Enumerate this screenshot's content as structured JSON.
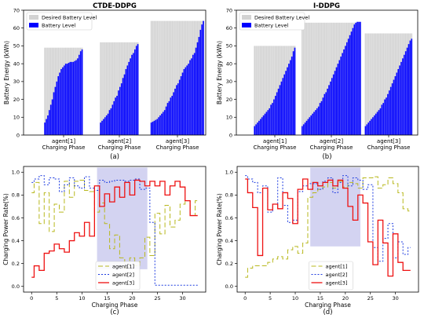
{
  "chart_data": [
    {
      "type": "bar",
      "title": "CTDE-DDPG",
      "ylabel": "Battery Energy (kWh)",
      "ylim": [
        0,
        70
      ],
      "yticks": [
        0,
        10,
        20,
        30,
        40,
        50,
        60,
        70
      ],
      "legend": {
        "placement": "top-left",
        "items": [
          "Desired Battery Level",
          "Battery Level"
        ]
      },
      "colors": {
        "desired": "#d3d3d3",
        "battery": "#0000ff"
      },
      "caption": "(a)",
      "groups": [
        {
          "label_line1": "agent[1]",
          "label_line2": "Charging Phase",
          "desired": 49,
          "values": [
            7,
            9,
            11,
            14,
            17,
            20,
            24,
            27,
            30,
            33,
            35,
            37,
            38,
            39,
            40,
            40,
            40.5,
            41,
            41,
            41,
            41.5,
            42,
            43,
            45,
            47,
            48
          ]
        },
        {
          "label_line1": "agent[2]",
          "label_line2": "Charging Phase",
          "desired": 52,
          "values": [
            7,
            8,
            9,
            10,
            11,
            12,
            14,
            15,
            17,
            19,
            21,
            22,
            25,
            27,
            29,
            32,
            34,
            37,
            39,
            41,
            43,
            45,
            46,
            48,
            50,
            51
          ]
        },
        {
          "label_line1": "agent[3]",
          "label_line2": "Charging Phase",
          "desired": 64,
          "values": [
            7,
            7.5,
            8,
            8.5,
            9,
            10,
            11,
            12,
            13,
            14,
            16,
            18,
            19,
            21,
            22,
            24,
            26,
            28,
            29,
            31,
            33,
            35,
            37,
            38,
            39,
            40,
            42,
            43,
            45,
            46,
            49,
            52,
            55,
            59,
            62,
            64
          ]
        }
      ]
    },
    {
      "type": "bar",
      "title": "I-DDPG",
      "ylabel": "Battery Energy (kWh)",
      "ylim": [
        0,
        70
      ],
      "yticks": [
        0,
        10,
        20,
        30,
        40,
        50,
        60,
        70
      ],
      "legend": {
        "placement": "top-left",
        "items": [
          "Desired Battery Level",
          "Battery Level"
        ]
      },
      "colors": {
        "desired": "#d3d3d3",
        "battery": "#0000ff"
      },
      "caption": "(b)",
      "groups": [
        {
          "label_line1": "agent[1]",
          "label_line2": "Charging Phase",
          "desired": 50,
          "values": [
            5,
            6,
            7,
            8,
            9,
            10,
            11,
            12,
            13,
            14,
            15,
            17,
            18,
            20,
            22,
            24,
            26,
            28,
            30,
            32,
            34,
            36,
            38,
            40,
            42,
            44,
            47,
            49
          ]
        },
        {
          "label_line1": "agent[2]",
          "label_line2": "Charging Phase",
          "desired": 63,
          "values": [
            5,
            6,
            7,
            8,
            9,
            10,
            11,
            12,
            13,
            14,
            15,
            16,
            18,
            19,
            21,
            23,
            24,
            26,
            28,
            30,
            32,
            34,
            36,
            38,
            40,
            42,
            44,
            46,
            48,
            50,
            52,
            54,
            56,
            58,
            60,
            62,
            63,
            63.5,
            63.5,
            63.5
          ]
        },
        {
          "label_line1": "agent[3]",
          "label_line2": "Charging Phase",
          "desired": 57,
          "values": [
            5,
            6,
            7,
            8,
            9,
            10,
            11,
            12,
            13,
            14,
            15,
            17,
            18,
            20,
            21,
            23,
            25,
            27,
            29,
            31,
            33,
            35,
            37,
            39,
            41,
            43,
            45,
            47,
            49,
            51,
            53,
            54
          ]
        }
      ]
    },
    {
      "type": "line",
      "xlabel": "Charging Phase",
      "ylabel": "Charging Power Rate(%)",
      "xlim": [
        -1.6,
        34.6
      ],
      "ylim": [
        -0.05,
        1.05
      ],
      "xticks": [
        0,
        5,
        10,
        15,
        20,
        25,
        30
      ],
      "yticks": [
        0.0,
        0.2,
        0.4,
        0.6,
        0.8,
        1.0
      ],
      "ytick_labels": [
        "0.0",
        "0.2",
        "0.4",
        "0.6",
        "0.8",
        "1.0"
      ],
      "highlight": {
        "x": [
          13,
          23
        ],
        "y": [
          0.15,
          1.04
        ],
        "color": "#c8c8ee"
      },
      "legend": {
        "placement": "lower-center"
      },
      "caption": "(c)",
      "series": [
        {
          "name": "agent[1]",
          "color": "#b8b81e",
          "dash": "6,3",
          "values": [
            0.82,
            0.91,
            0.55,
            0.82,
            0.48,
            0.72,
            0.65,
            0.92,
            0.78,
            0.92,
            0.93,
            0.84,
            0.83,
            0.65,
            0.73,
            0.55,
            0.33,
            0.45,
            0.25,
            0.16,
            0.25,
            0.18,
            0.25,
            0.43,
            0.27,
            0.64,
            0.46,
            0.71,
            0.52,
            0.58,
            0.72,
            0.75,
            0.62,
            0.75
          ]
        },
        {
          "name": "agent[2]",
          "color": "#1f3de0",
          "dash": "2,2",
          "values": [
            0.91,
            0.94,
            0.97,
            0.89,
            0.95,
            0.94,
            0.83,
            0.89,
            0.95,
            0.88,
            0.86,
            0.96,
            0.86,
            0.84,
            0.93,
            0.91,
            0.92,
            0.93,
            0.93,
            0.92,
            0.93,
            0.94,
            0.85,
            0.86,
            0.56,
            0.01,
            0.01,
            0.01,
            0.01,
            0.01,
            0.01,
            0.01,
            0.01,
            0.01
          ]
        },
        {
          "name": "agent[3]",
          "color": "#ee1111",
          "dash": "",
          "values": [
            0.08,
            0.18,
            0.14,
            0.29,
            0.31,
            0.37,
            0.33,
            0.3,
            0.4,
            0.47,
            0.44,
            0.56,
            0.44,
            0.88,
            0.7,
            0.81,
            0.74,
            0.87,
            0.78,
            0.91,
            0.8,
            0.93,
            0.92,
            0.88,
            0.92,
            0.88,
            0.92,
            0.8,
            0.88,
            0.92,
            0.87,
            0.75,
            0.62,
            0.62
          ]
        }
      ]
    },
    {
      "type": "line",
      "xlabel": "Charging Phase",
      "ylabel": "Charging Power Rate(%)",
      "xlim": [
        -1.6,
        34.6
      ],
      "ylim": [
        -0.05,
        1.05
      ],
      "xticks": [
        0,
        5,
        10,
        15,
        20,
        25,
        30
      ],
      "yticks": [
        0.0,
        0.2,
        0.4,
        0.6,
        0.8,
        1.0
      ],
      "ytick_labels": [
        "0.0",
        "0.2",
        "0.4",
        "0.6",
        "0.8",
        "1.0"
      ],
      "highlight": {
        "x": [
          13,
          23
        ],
        "y": [
          0.35,
          1.04
        ],
        "color": "#c8c8ee"
      },
      "legend": {
        "placement": "lower-center"
      },
      "caption": "(d)",
      "series": [
        {
          "name": "agent[1]",
          "color": "#b8b81e",
          "dash": "6,3",
          "values": [
            0.08,
            0.16,
            0.18,
            0.18,
            0.18,
            0.21,
            0.24,
            0.26,
            0.24,
            0.32,
            0.35,
            0.29,
            0.38,
            0.78,
            0.82,
            0.85,
            0.87,
            0.91,
            0.86,
            0.92,
            0.87,
            0.91,
            0.9,
            0.86,
            0.95,
            0.95,
            0.96,
            0.86,
            0.89,
            0.95,
            0.9,
            0.82,
            0.68,
            0.66
          ]
        },
        {
          "name": "agent[2]",
          "color": "#1f3de0",
          "dash": "2,2",
          "values": [
            0.97,
            0.94,
            0.91,
            0.82,
            0.88,
            0.65,
            0.72,
            0.95,
            0.71,
            0.56,
            0.58,
            0.83,
            0.88,
            0.9,
            0.9,
            0.85,
            0.92,
            0.95,
            0.82,
            0.91,
            0.97,
            0.88,
            0.95,
            0.93,
            0.85,
            0.89,
            0.34,
            0.22,
            0.42,
            0.55,
            0.25,
            0.39,
            0.28,
            0.34
          ]
        },
        {
          "name": "agent[3]",
          "color": "#ee1111",
          "dash": "",
          "values": [
            0.94,
            0.82,
            0.69,
            0.27,
            0.86,
            0.67,
            0.72,
            0.68,
            0.82,
            0.77,
            0.55,
            0.85,
            0.94,
            0.85,
            0.91,
            0.88,
            0.91,
            0.93,
            0.88,
            0.93,
            0.86,
            0.7,
            0.58,
            0.8,
            0.73,
            0.39,
            0.19,
            0.58,
            0.38,
            0.09,
            0.46,
            0.21,
            0.14,
            0.14
          ]
        }
      ]
    }
  ]
}
